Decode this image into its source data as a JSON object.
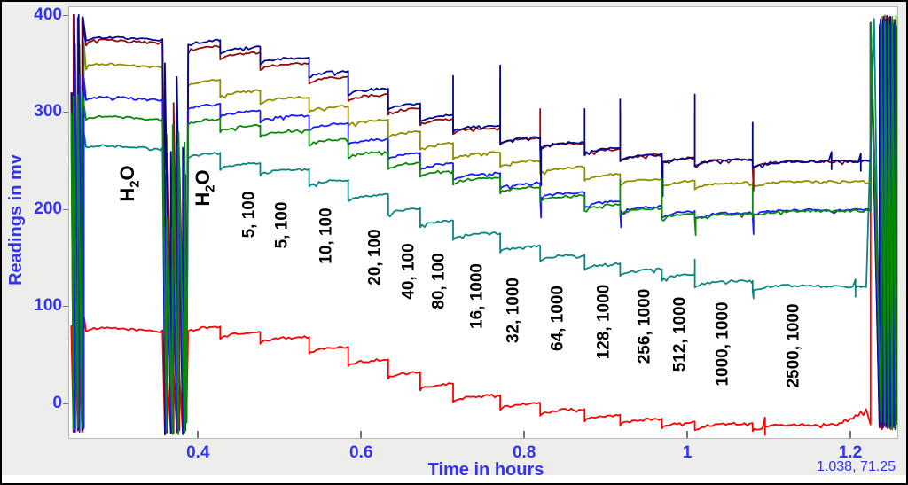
{
  "window": {
    "margin_color": "#EDEEEC",
    "plot_bg": "#FFFFFF",
    "plot_border_color": "#B6B6B6",
    "outer_border_color": "#000000",
    "axis_text_color": "#3333EE",
    "tick_mark_color": "#777777",
    "annotation_color": "#000000"
  },
  "chart_data": {
    "type": "line",
    "title": "",
    "xlabel": "Time in hours",
    "ylabel": "Readings in mv",
    "grid": false,
    "legend": "none",
    "cursor_readout": "1.038, 71.25",
    "x_ticks": [
      0.4,
      0.6,
      0.8,
      1,
      1.2
    ],
    "x_tick_labels": [
      "0.4",
      "0.6",
      "0.8",
      "1",
      "1.2"
    ],
    "y_ticks": [
      0,
      100,
      200,
      300,
      400
    ],
    "y_tick_labels": [
      "0",
      "100",
      "200",
      "300",
      "400"
    ],
    "x_range_hours": [
      0.242,
      1.2576
    ],
    "y_range_mv": [
      -36,
      408
    ],
    "segments": [
      {
        "label": "H2O",
        "t0": 0.2605,
        "t1": 0.3564
      },
      {
        "label": "H2O",
        "t0": 0.3858,
        "t1": 0.4272
      },
      {
        "label": "5, 100",
        "t0": 0.4272,
        "t1": 0.4763
      },
      {
        "label": "5, 100",
        "t0": 0.4763,
        "t1": 0.5362
      },
      {
        "label": "10, 100",
        "t0": 0.5362,
        "t1": 0.5842
      },
      {
        "label": "20, 100",
        "t0": 0.5842,
        "t1": 0.6332
      },
      {
        "label": "40, 100",
        "t0": 0.6332,
        "t1": 0.6725
      },
      {
        "label": "80, 100",
        "t0": 0.6725,
        "t1": 0.7128
      },
      {
        "label": "16, 1000",
        "t0": 0.7128,
        "t1": 0.7706
      },
      {
        "label": "32, 1000",
        "t0": 0.7706,
        "t1": 0.8196
      },
      {
        "label": "64, 1000",
        "t0": 0.8196,
        "t1": 0.8741
      },
      {
        "label": "128, 1000",
        "t0": 0.8741,
        "t1": 0.9177
      },
      {
        "label": "256, 1000",
        "t0": 0.9177,
        "t1": 0.9689
      },
      {
        "label": "512, 1000",
        "t0": 0.9689,
        "t1": 1.0092
      },
      {
        "label": "1000, 1000",
        "t0": 1.0092,
        "t1": 1.0801
      },
      {
        "label": "2500, 1000",
        "t0": 1.0801,
        "t1": 1.2195
      }
    ],
    "bands": {
      "left": [
        0.2445,
        0.2605
      ],
      "wash": [
        0.3564,
        0.3858
      ],
      "end": [
        1.2335,
        1.256
      ]
    },
    "series": [
      {
        "name": "red",
        "color": "#FF0000",
        "plateaus": [
          80,
          79,
          73,
          68,
          58,
          45,
          32,
          20,
          8,
          0,
          -6,
          -12,
          -16,
          -19,
          -21,
          -22
        ],
        "spikes": [],
        "tail": {
          "t": 1.185,
          "dv": 15
        }
      },
      {
        "name": "teal",
        "color": "#0D8585",
        "plateaus": [
          268,
          258,
          247,
          241,
          230,
          215,
          201,
          188,
          175,
          162,
          153,
          144,
          138,
          133,
          126,
          122
        ],
        "spikes": [
          [
            14,
            15
          ],
          [
            15,
            -14
          ]
        ],
        "end_ramp": true
      },
      {
        "name": "olive",
        "color": "#8F8F00",
        "plateaus": [
          352,
          333,
          322,
          315,
          306,
          292,
          280,
          268,
          258,
          250,
          243,
          236,
          231,
          229,
          227,
          228
        ],
        "spikes": []
      },
      {
        "name": "darkred",
        "color": "#8B0D0D",
        "plateaus": [
          377,
          368,
          361,
          350,
          336,
          318,
          304,
          293,
          284,
          273,
          268,
          262,
          256,
          253,
          251,
          249
        ],
        "spikes": [
          [
            9,
            50
          ],
          [
            10,
            30
          ],
          [
            12,
            40
          ],
          [
            14,
            45
          ],
          [
            15,
            -30
          ]
        ]
      },
      {
        "name": "navy",
        "color": "#000890",
        "plateaus": [
          380,
          374,
          367,
          356,
          342,
          324,
          309,
          297,
          286,
          274,
          269,
          263,
          256,
          253,
          251,
          249
        ],
        "spikes": [
          [
            8,
            40
          ],
          [
            9,
            62
          ],
          [
            10,
            -45
          ],
          [
            11,
            34
          ],
          [
            12,
            50
          ],
          [
            13,
            -40
          ],
          [
            14,
            65
          ],
          [
            15,
            38
          ]
        ]
      },
      {
        "name": "blue",
        "color": "#1A1AFF",
        "plateaus": [
          318,
          308,
          301,
          296,
          288,
          272,
          258,
          247,
          237,
          227,
          217,
          208,
          203,
          198,
          196,
          199
        ],
        "spikes": [
          [
            10,
            -26
          ],
          [
            12,
            -22
          ],
          [
            15,
            -25
          ]
        ]
      },
      {
        "name": "green",
        "color": "#0A8A0A",
        "plateaus": [
          298,
          293,
          286,
          281,
          272,
          259,
          248,
          240,
          232,
          223,
          214,
          205,
          201,
          196,
          195,
          198
        ],
        "spikes": [
          [
            12,
            25
          ],
          [
            13,
            30
          ],
          [
            14,
            -22
          ],
          [
            15,
            28
          ]
        ]
      }
    ],
    "annotations": [
      {
        "pre": "H",
        "sub": "2",
        "post": "O",
        "t": 0.314,
        "v": 226,
        "size": 22
      },
      {
        "pre": "H",
        "sub": "2",
        "post": "O",
        "t": 0.4065,
        "v": 222,
        "size": 22
      },
      {
        "text": "5, 100",
        "t": 0.463,
        "v": 194
      },
      {
        "text": "5, 100",
        "t": 0.5035,
        "v": 183
      },
      {
        "text": "10, 100",
        "t": 0.557,
        "v": 172
      },
      {
        "text": "20, 100",
        "t": 0.617,
        "v": 150
      },
      {
        "text": "40, 100",
        "t": 0.658,
        "v": 136
      },
      {
        "text": "80, 100",
        "t": 0.695,
        "v": 126
      },
      {
        "text": "16, 1000",
        "t": 0.742,
        "v": 110
      },
      {
        "text": "32, 1000",
        "t": 0.787,
        "v": 96
      },
      {
        "text": "64, 1000",
        "t": 0.841,
        "v": 87
      },
      {
        "text": "128, 1000",
        "t": 0.898,
        "v": 84
      },
      {
        "text": "256, 1000",
        "t": 0.948,
        "v": 79
      },
      {
        "text": "512, 1000",
        "t": 0.991,
        "v": 71
      },
      {
        "text": "1000, 1000",
        "t": 1.043,
        "v": 61
      },
      {
        "text": "2500, 1000",
        "t": 1.13,
        "v": 59
      }
    ]
  }
}
